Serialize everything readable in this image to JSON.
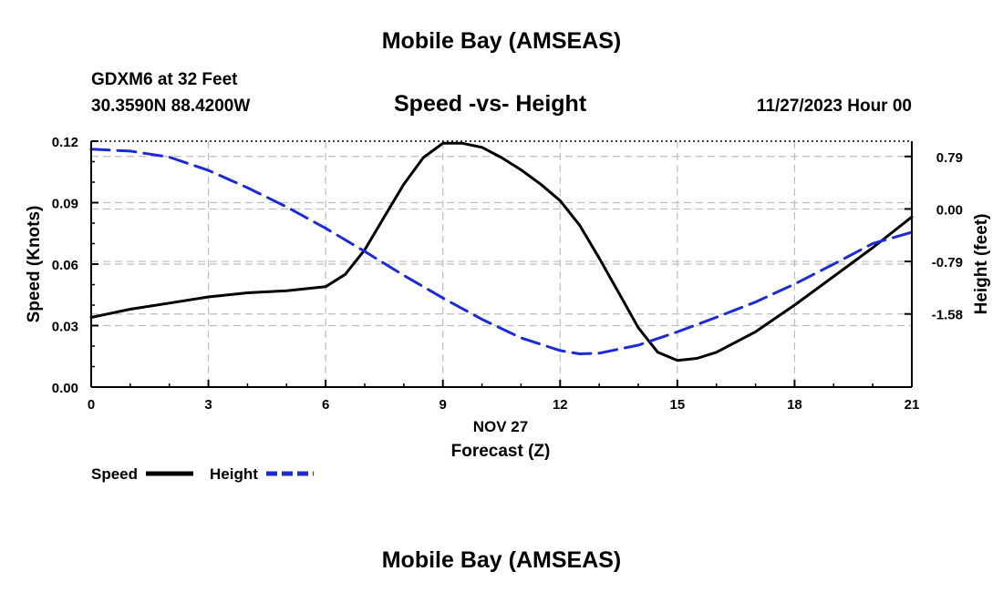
{
  "page": {
    "title_top": "Mobile Bay (AMSEAS)",
    "title_bottom": "Mobile Bay (AMSEAS)",
    "station_line": "GDXM6 at 32 Feet",
    "coords_line": "30.3590N  88.4200W",
    "date_line": "11/27/2023 Hour 00"
  },
  "chart_data": {
    "type": "line",
    "title": "Speed -vs- Height",
    "xlabel": "Forecast (Z)",
    "x_date_label": "NOV 27",
    "ylabel": "Speed (Knots)",
    "y2label": "Height (feet)",
    "xlim": [
      0,
      21
    ],
    "ylim": [
      0,
      0.12
    ],
    "y2lim": [
      -2.68,
      1.02
    ],
    "x_ticks": [
      0,
      3,
      6,
      9,
      12,
      15,
      18,
      21
    ],
    "x_tick_labels": [
      "0",
      "3",
      "6",
      "9",
      "12",
      "15",
      "18",
      "21"
    ],
    "y_ticks": [
      0,
      0.03,
      0.06,
      0.09,
      0.12
    ],
    "y_tick_labels": [
      "0.00",
      "0.03",
      "0.06",
      "0.09",
      "0.12"
    ],
    "y2_ticks": [
      0.79,
      0,
      -0.79,
      -1.58
    ],
    "y2_tick_labels": [
      "0.79",
      "0.00",
      "-0.79",
      "-1.58"
    ],
    "grid": true,
    "legend_position": "bottom-left",
    "series": [
      {
        "name": "Speed",
        "axis": "left",
        "color": "#000000",
        "style": "solid",
        "x": [
          0,
          1,
          2,
          3,
          4,
          5,
          6,
          6.5,
          7,
          7.5,
          8,
          8.5,
          9,
          9.5,
          10,
          10.5,
          11,
          11.5,
          12,
          12.5,
          13,
          13.5,
          14,
          14.5,
          15,
          15.5,
          16,
          17,
          18,
          19,
          20,
          21
        ],
        "values": [
          0.034,
          0.038,
          0.041,
          0.044,
          0.046,
          0.047,
          0.049,
          0.055,
          0.067,
          0.083,
          0.099,
          0.112,
          0.119,
          0.119,
          0.117,
          0.112,
          0.106,
          0.099,
          0.091,
          0.079,
          0.063,
          0.046,
          0.029,
          0.017,
          0.013,
          0.014,
          0.017,
          0.027,
          0.04,
          0.054,
          0.068,
          0.083
        ]
      },
      {
        "name": "Height",
        "axis": "right",
        "color": "#1c2bd4",
        "style": "dashed",
        "x": [
          0,
          1,
          2,
          3,
          4,
          5,
          6,
          7,
          8,
          9,
          10,
          11,
          12,
          12.5,
          13,
          14,
          15,
          16,
          17,
          18,
          19,
          20,
          21
        ],
        "values": [
          0.9,
          0.87,
          0.78,
          0.58,
          0.32,
          0.03,
          -0.29,
          -0.64,
          -1.0,
          -1.34,
          -1.66,
          -1.94,
          -2.13,
          -2.18,
          -2.17,
          -2.05,
          -1.85,
          -1.63,
          -1.4,
          -1.13,
          -0.83,
          -0.52,
          -0.35
        ]
      }
    ]
  }
}
